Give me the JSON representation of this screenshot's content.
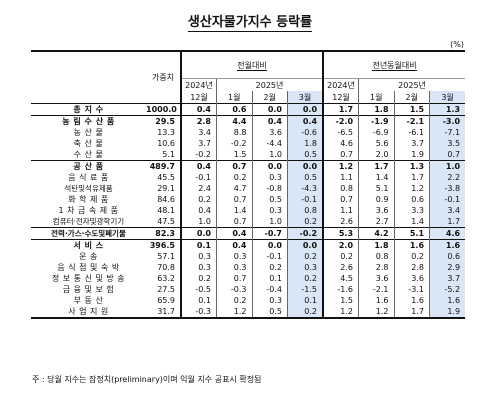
{
  "title": "생산자물가지수 등락률",
  "unit": "(%)",
  "header": {
    "weight": "가중치",
    "mom": "전월대비",
    "yoy": "전년동월대비",
    "year2024": "2024년",
    "year2025": "2025년",
    "months": [
      "12월",
      "1월",
      "2월",
      "3월"
    ]
  },
  "rows": [
    {
      "label": "총 지 수",
      "values": [
        "1000.0",
        "0.4",
        "0.6",
        "0.0",
        "0.0",
        "1.7",
        "1.8",
        "1.5",
        "1.3"
      ]
    },
    {
      "label": "농 림 수 산 품",
      "values": [
        "29.5",
        "2.8",
        "4.4",
        "0.4",
        "0.4",
        "-2.0",
        "-1.9",
        "-2.1",
        "-3.0"
      ]
    },
    {
      "label": "농 산 물",
      "values": [
        "13.3",
        "3.4",
        "8.8",
        "3.6",
        "-0.6",
        "-6.5",
        "-6.9",
        "-6.1",
        "-7.1"
      ]
    },
    {
      "label": "축 산 물",
      "values": [
        "10.6",
        "3.7",
        "-0.2",
        "-4.4",
        "1.8",
        "4.6",
        "5.6",
        "3.7",
        "3.5"
      ]
    },
    {
      "label": "수 산 물",
      "values": [
        "5.1",
        "-0.2",
        "1.5",
        "1.0",
        "0.5",
        "0.7",
        "2.0",
        "1.9",
        "0.7"
      ]
    },
    {
      "label": "공 산 품",
      "values": [
        "489.7",
        "0.4",
        "0.7",
        "0.0",
        "0.0",
        "1.2",
        "1.7",
        "1.3",
        "1.0"
      ]
    },
    {
      "label": "음 식 료 품",
      "values": [
        "45.5",
        "-0.1",
        "0.2",
        "0.3",
        "0.5",
        "1.1",
        "1.4",
        "1.7",
        "2.2"
      ]
    },
    {
      "label": "석탄및석유제품",
      "values": [
        "29.1",
        "2.4",
        "4.7",
        "-0.8",
        "-4.3",
        "0.8",
        "5.1",
        "1.2",
        "-3.8"
      ]
    },
    {
      "label": "화 학 제 품",
      "values": [
        "84.6",
        "0.2",
        "0.7",
        "0.5",
        "-0.1",
        "0.7",
        "0.9",
        "0.6",
        "-0.1"
      ]
    },
    {
      "label": "1 차 금 속 제 품",
      "values": [
        "48.1",
        "0.4",
        "1.4",
        "0.3",
        "0.8",
        "1.1",
        "3.6",
        "3.3",
        "3.4"
      ]
    },
    {
      "label": "컴퓨터·전자및광학기기",
      "values": [
        "47.5",
        "1.0",
        "0.7",
        "1.0",
        "0.2",
        "2.6",
        "2.7",
        "1.4",
        "1.7"
      ]
    },
    {
      "label": "전력·가스·수도및폐기물",
      "values": [
        "82.3",
        "0.0",
        "0.4",
        "-0.7",
        "-0.2",
        "5.3",
        "4.2",
        "5.1",
        "4.6"
      ]
    },
    {
      "label": "서 비 스",
      "values": [
        "396.5",
        "0.1",
        "0.4",
        "0.0",
        "0.0",
        "2.0",
        "1.8",
        "1.6",
        "1.6"
      ]
    },
    {
      "label": "운 송",
      "values": [
        "57.1",
        "0.3",
        "0.3",
        "-0.1",
        "0.2",
        "0.2",
        "0.8",
        "0.2",
        "0.6"
      ]
    },
    {
      "label": "음 식 점 및 숙 박",
      "values": [
        "70.8",
        "0.3",
        "0.3",
        "0.2",
        "0.3",
        "2.6",
        "2.8",
        "2.8",
        "2.9"
      ]
    },
    {
      "label": "정 보 통 신 및 방 송",
      "values": [
        "63.2",
        "0.2",
        "0.7",
        "0.1",
        "0.2",
        "4.5",
        "3.6",
        "3.6",
        "3.7"
      ]
    },
    {
      "label": "금 융 및 보 험",
      "values": [
        "27.5",
        "-0.5",
        "-0.3",
        "-0.4",
        "-1.5",
        "-1.6",
        "-2.1",
        "-3.1",
        "-5.2"
      ]
    },
    {
      "label": "부 동 산",
      "values": [
        "65.9",
        "0.1",
        "0.2",
        "0.3",
        "0.1",
        "1.5",
        "1.6",
        "1.6",
        "1.6"
      ]
    },
    {
      "label": "사 업 지 원",
      "values": [
        "31.7",
        "-0.3",
        "1.2",
        "0.5",
        "0.2",
        "1.2",
        "1.2",
        "1.7",
        "1.9"
      ]
    }
  ],
  "note": "주 : 당월 지수는 잠정치(preliminary)이며 익월 지수 공표시 확정됨"
}
